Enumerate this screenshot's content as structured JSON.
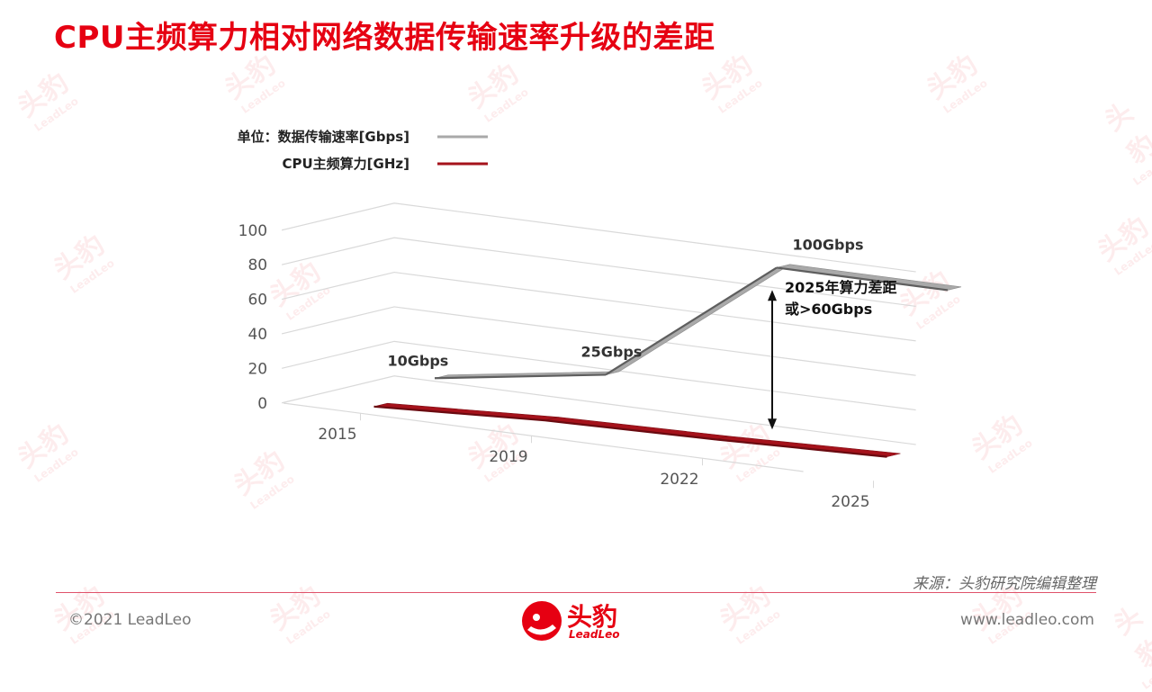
{
  "page": {
    "title": "CPU主频算力相对网络数据传输速率升级的差距",
    "source": "来源：头豹研究院编辑整理",
    "copyright": "©2021 LeadLeo",
    "website": "www.leadleo.com",
    "logo_cn": "头豹",
    "logo_en": "LeadLeo",
    "watermark_text": "头豹",
    "watermark_sub": "LeadLeo"
  },
  "chart_data": {
    "type": "line",
    "title": "",
    "three_d": true,
    "categories": [
      "2015",
      "2019",
      "2022",
      "2025"
    ],
    "ylim": [
      0,
      100
    ],
    "yticks": [
      0,
      20,
      40,
      60,
      80,
      100
    ],
    "grid": true,
    "legend_position": "top-left",
    "series": [
      {
        "name": "单位：数据传输速率[Gbps]",
        "color": "#a9a9a9",
        "values": [
          10,
          25,
          100,
          100
        ],
        "data_labels": [
          "10Gbps",
          "25Gbps",
          "100Gbps",
          ""
        ]
      },
      {
        "name": "CPU主频算力[GHz]",
        "color": "#a5121b",
        "values": [
          2,
          7,
          9,
          12
        ]
      }
    ],
    "annotation": {
      "lines": [
        "2025年算力差距",
        "或>60Gbps"
      ]
    }
  }
}
